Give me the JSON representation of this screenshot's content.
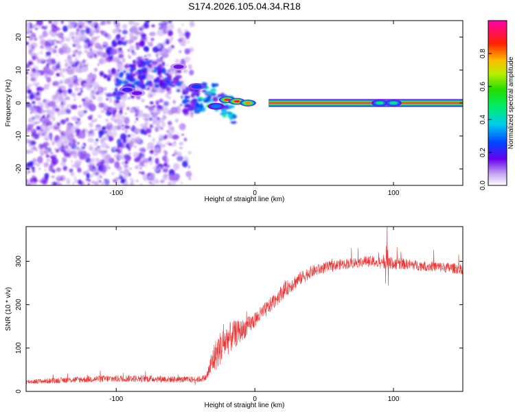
{
  "figure_title": "S174.2026.105.04.34.R18",
  "chart_data": [
    {
      "type": "heatmap",
      "name": "spectrogram",
      "xlabel": "Height of straight line (km)",
      "ylabel": "Frequency (Hz)",
      "xlim": [
        -165,
        150
      ],
      "ylim": [
        -25,
        25
      ],
      "xticks": [
        -100,
        0,
        100
      ],
      "yticks": [
        -20,
        -10,
        0,
        10,
        20
      ],
      "xtick_labels": [
        "-100",
        "0",
        "100"
      ],
      "ytick_labels": [
        "-20",
        "-10",
        "0",
        "10",
        "20"
      ],
      "carrier": {
        "freq": 0,
        "x_start": 10,
        "x_end": 150,
        "value": 1.0
      },
      "features": [
        {
          "x": 90,
          "freq": 0,
          "value": 0.45
        },
        {
          "x": 100,
          "freq": 0,
          "value": 0.45
        },
        {
          "x": -20,
          "freq": 1,
          "value": 0.9
        },
        {
          "x": -13,
          "freq": 0.5,
          "value": 0.9
        },
        {
          "x": -5,
          "freq": 0,
          "value": 0.8
        },
        {
          "x": -28,
          "freq": -1,
          "value": 0.3
        },
        {
          "x": -42,
          "freq": 5,
          "value": 0.25
        },
        {
          "x": -55,
          "freq": 11,
          "value": 0.15
        },
        {
          "x": -85,
          "freq": 3,
          "value": 0.15
        },
        {
          "x": -92,
          "freq": 4,
          "value": 0.2
        }
      ],
      "noise_region": {
        "x_start": -165,
        "x_end": -45,
        "freq_range": [
          -25,
          25
        ]
      },
      "colorbar": {
        "label": "Normalized spectral amplitude",
        "range": [
          0,
          1
        ],
        "ticks": [
          0.0,
          0.2,
          0.4,
          0.6,
          0.8
        ],
        "tick_labels": [
          "0.0",
          "0.2",
          "0.4",
          "0.6",
          "0.8"
        ]
      }
    },
    {
      "type": "line",
      "name": "snr",
      "xlabel": "Height of straight line (km)",
      "ylabel": "SNR (10 * v/v)",
      "xlim": [
        -165,
        150
      ],
      "ylim": [
        0,
        380
      ],
      "xticks": [
        -100,
        0,
        100
      ],
      "yticks": [
        0,
        100,
        200,
        300
      ],
      "xtick_labels": [
        "-100",
        "0",
        "100"
      ],
      "ytick_labels": [
        "0",
        "100",
        "200",
        "300"
      ],
      "color": "#ee3333",
      "series": [
        {
          "name": "SNR",
          "x": [
            -165,
            -150,
            -130,
            -110,
            -90,
            -70,
            -50,
            -40,
            -35,
            -30,
            -25,
            -20,
            -15,
            -10,
            -5,
            0,
            10,
            20,
            30,
            40,
            50,
            60,
            70,
            80,
            90,
            100,
            110,
            120,
            130,
            140,
            150
          ],
          "y": [
            22,
            24,
            27,
            29,
            30,
            29,
            27,
            28,
            32,
            75,
            100,
            120,
            130,
            140,
            150,
            165,
            195,
            230,
            255,
            275,
            285,
            292,
            296,
            300,
            298,
            295,
            293,
            290,
            288,
            285,
            282
          ],
          "noise": [
            5,
            6,
            7,
            8,
            8,
            8,
            7,
            7,
            8,
            35,
            40,
            38,
            33,
            25,
            22,
            18,
            18,
            18,
            16,
            14,
            13,
            12,
            12,
            12,
            14,
            14,
            12,
            12,
            12,
            12,
            12
          ]
        }
      ]
    }
  ]
}
